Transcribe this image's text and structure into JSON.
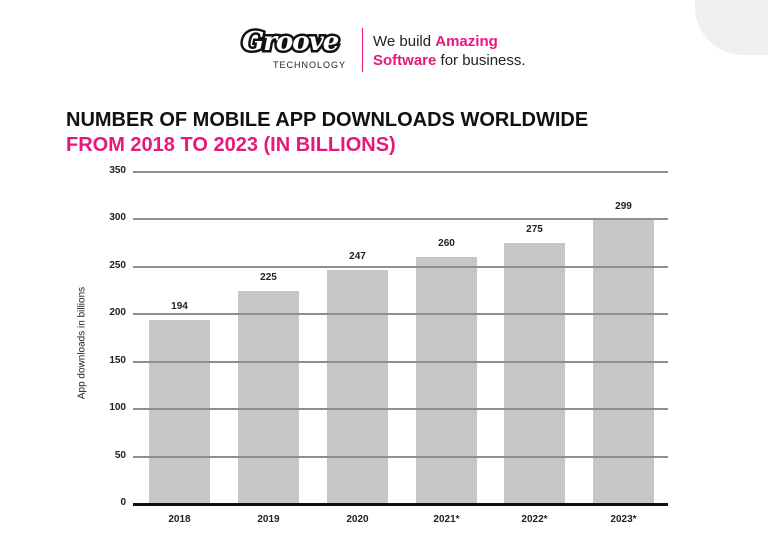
{
  "brand": {
    "logo_word": "Groove",
    "logo_sub": "TECHNOLOGY",
    "tagline_1a": "We build ",
    "tagline_1b": "Amazing",
    "tagline_2a": "Software",
    "tagline_2b": " for business.",
    "accent_color": "#e8177e"
  },
  "title_line1": "NUMBER OF MOBILE APP DOWNLOADS WORLDWIDE",
  "title_line2": "FROM 2018 TO 2023 (IN BILLIONS)",
  "chart_data": {
    "type": "bar",
    "title": "NUMBER OF MOBILE APP DOWNLOADS WORLDWIDE FROM 2018 TO 2023 (IN BILLIONS)",
    "categories": [
      "2018",
      "2019",
      "2020",
      "2021*",
      "2022*",
      "2023*"
    ],
    "values": [
      194,
      225,
      247,
      260,
      275,
      299
    ],
    "xlabel": "",
    "ylabel": "App downloads in billions",
    "ylim": [
      0,
      350
    ],
    "yticks": [
      0,
      50,
      100,
      150,
      200,
      250,
      300,
      350
    ],
    "grid": true,
    "legend": "none",
    "bar_color": "#c6c6c6"
  }
}
